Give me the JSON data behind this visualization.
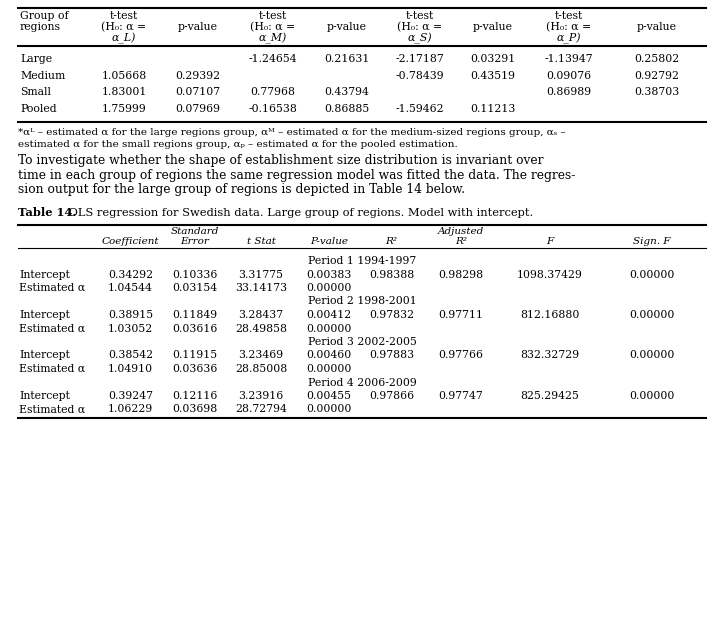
{
  "table13_rows": [
    [
      "Large",
      "",
      "",
      "-1.24654",
      "0.21631",
      "-2.17187",
      "0.03291",
      "-1.13947",
      "0.25802"
    ],
    [
      "Medium",
      "1.05668",
      "0.29392",
      "",
      "",
      "-0.78439",
      "0.43519",
      "0.09076",
      "0.92792"
    ],
    [
      "Small",
      "1.83001",
      "0.07107",
      "0.77968",
      "0.43794",
      "",
      "",
      "0.86989",
      "0.38703"
    ],
    [
      "Pooled",
      "1.75999",
      "0.07969",
      "-0.16538",
      "0.86885",
      "-1.59462",
      "0.11213",
      "",
      ""
    ]
  ],
  "table14_rows": [
    [
      "period",
      "Period 1 1994-1997"
    ],
    [
      "Intercept",
      "0.34292",
      "0.10336",
      "3.31775",
      "0.00383",
      "0.98388",
      "0.98298",
      "1098.37429",
      "0.00000"
    ],
    [
      "Estimated α",
      "1.04544",
      "0.03154",
      "33.14173",
      "0.00000",
      "",
      "",
      "",
      ""
    ],
    [
      "period",
      "Period 2 1998-2001"
    ],
    [
      "Intercept",
      "0.38915",
      "0.11849",
      "3.28437",
      "0.00412",
      "0.97832",
      "0.97711",
      "812.16880",
      "0.00000"
    ],
    [
      "Estimated α",
      "1.03052",
      "0.03616",
      "28.49858",
      "0.00000",
      "",
      "",
      "",
      ""
    ],
    [
      "period",
      "Period 3 2002-2005"
    ],
    [
      "Intercept",
      "0.38542",
      "0.11915",
      "3.23469",
      "0.00460",
      "0.97883",
      "0.97766",
      "832.32729",
      "0.00000"
    ],
    [
      "Estimated α",
      "1.04910",
      "0.03636",
      "28.85008",
      "0.00000",
      "",
      "",
      "",
      ""
    ],
    [
      "period",
      "Period 4 2006-2009"
    ],
    [
      "Intercept",
      "0.39247",
      "0.12116",
      "3.23916",
      "0.00455",
      "0.97866",
      "0.97747",
      "825.29425",
      "0.00000"
    ],
    [
      "Estimated α",
      "1.06229",
      "0.03698",
      "28.72794",
      "0.00000",
      "",
      "",
      "",
      ""
    ]
  ],
  "table14_title_bold": "Table 14.",
  "table14_title_normal": " OLS regression for Swedish data. Large group of regions. Model with intercept.",
  "paragraph": "To investigate whether the shape of establishment size distribution is invariant over\ntime in each group of regions the same regression model was fitted the data. The regres-\nsion output for the large group of regions is depicted in Table 14 below.",
  "fn1": "*αᴸ – estimated α for the large regions group, αᴹ – estimated α for the medium-sized regions group, αₛ –",
  "fn2": "estimated α for the small regions group, αₚ – estimated α for the pooled estimation.",
  "bg_color": "#ffffff"
}
